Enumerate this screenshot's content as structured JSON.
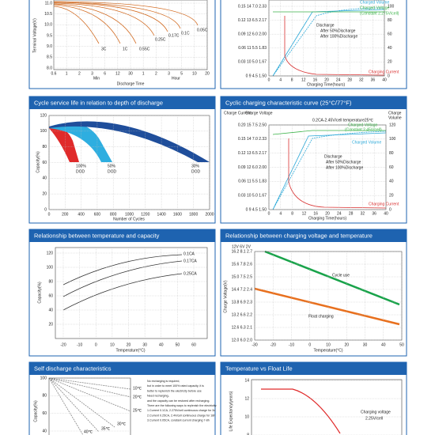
{
  "panels": [
    {
      "y_label": "Terminal Voltage(V)",
      "x_label": "Discharge Time",
      "y_ticks": [
        "11.0",
        "10.5",
        "10.0",
        "9.5",
        "9.0",
        "8.5",
        "8.0"
      ],
      "x_ticks": [
        "0.6",
        "1",
        "2",
        "3",
        "6",
        "12",
        "30",
        "1",
        "2",
        "3",
        "5",
        "10",
        "20"
      ],
      "notes": [
        "3C",
        "1C",
        "0.55C",
        "0.25C",
        "0.17C",
        "0.1C",
        "0.05C",
        "Min",
        "Hour"
      ]
    },
    {
      "x_label": "Charging Time(hours)",
      "y_ticks": [
        "0.15 14 7.0 2.33",
        "0.12 13 6.5 2.17",
        "0.09 12 6.0 2.00",
        "0.06 11 5.5 1.83",
        "0.03 10 5.0 1.67",
        "0 9 4.5 1.50"
      ],
      "y_ticks_right": [
        "100",
        "80",
        "60",
        "40",
        "20",
        "0"
      ],
      "x_ticks": [
        "0",
        "4",
        "8",
        "12",
        "16",
        "20",
        "24",
        "28",
        "32",
        "36",
        "40"
      ],
      "notes": [
        "Charged Volume",
        "Charged Voltage",
        "(Constant 2.275V/cell)",
        "Discharge",
        "After 50%Discharge",
        "After 100%Discharge",
        "Charging Current"
      ]
    },
    {
      "title": "Cycle service life in relation to depth of discharge",
      "y_label": "Capacity(%)",
      "x_label": "Number of Cycles",
      "y_ticks": [
        "120",
        "100",
        "80",
        "60",
        "40",
        "20",
        "0"
      ],
      "x_ticks": [
        "0",
        "200",
        "400",
        "600",
        "800",
        "1000",
        "1200",
        "1400",
        "1600",
        "1800",
        "2000"
      ],
      "notes": [
        "100%",
        "DOD",
        "50%",
        "DOD",
        "30%",
        "DOD"
      ]
    },
    {
      "title": "Cyclic charging characteristic curve (25°C/77°F)",
      "x_label": "Charging Time(hours)",
      "y_ticks": [
        "0.20 15 7.5 2.50",
        "0.15 14 7.0 2.33",
        "0.12 13 6.5 2.17",
        "0.09 12 6.0 2.00",
        "0.06 11 5.5 1.83",
        "0.03 10 5.0 1.67",
        "0 9 4.5 1.50"
      ],
      "y_ticks_right": [
        "120",
        "100",
        "80",
        "60",
        "40",
        "20",
        "0"
      ],
      "x_ticks": [
        "0",
        "4",
        "8",
        "12",
        "16",
        "20",
        "24",
        "28",
        "32",
        "36",
        "40"
      ],
      "notes": [
        "0.2CA-2.45V/cell temperature25℃",
        "Charged Voltage",
        "(Constant 2.45V/cell)",
        "Charged Volume",
        "Discharge",
        "After 50%Discharge",
        "After 100%Discharge",
        "Charging Current",
        "Charge Current",
        "Charge Voltage",
        "Charge",
        "Volume"
      ]
    },
    {
      "title": "Relationship between temperature and capacity",
      "y_label": "Capacity(%)",
      "x_label": "Temperature(°C)",
      "y_ticks": [
        "120",
        "100",
        "80",
        "60",
        "40",
        "20"
      ],
      "x_ticks": [
        "-20",
        "-10",
        "0",
        "10",
        "20",
        "30",
        "40",
        "50",
        "60"
      ],
      "notes": [
        "0.1CA",
        "0.17CA",
        "0.25CA"
      ]
    },
    {
      "title": "Relationship between charging voltage and temperature",
      "y_label": "Charge Voltage(V)",
      "x_label": "Temperature(°C)",
      "y_ticks": [
        "16.2 8.1 2.7",
        "15.6 7.8 2.6",
        "15.0 7.5 2.5",
        "14.4 7.2 2.4",
        "13.8 6.9 2.3",
        "13.2 6.6 2.2",
        "12.6 6.3 2.1",
        "12.0 6.0 2.0"
      ],
      "x_ticks": [
        "-30",
        "-20",
        "-10",
        "0",
        "10",
        "20",
        "30",
        "40",
        "50"
      ],
      "notes": [
        "Cycle use",
        "Float charging",
        "12V 6V 2V"
      ]
    },
    {
      "title": "Self discharge characteristics",
      "y_label": "Capacity(%)",
      "y_ticks": [
        "100",
        "80",
        "60",
        "40"
      ],
      "notes": [
        "10℃",
        "20℃",
        "25℃",
        "30℃",
        "35℃",
        "40℃"
      ],
      "text_block": [
        "No recharging is required,",
        "but in order to meet 100% rated capacity, it is",
        "better to replenish the electricity before use",
        "Need recharging,",
        "and the capacity can be restored after recharging.",
        "There are the following ways to replenish the electricity:",
        "1.Current 0.1CA, 2.275V/cell continuous charge for 3d",
        "2.Current 0.25CA, 2.4V/cell continuous charge for 18h",
        "3.Current 0.05CA, constant current charging 7-8h"
      ]
    },
    {
      "title": "Temperature vs Float Life",
      "y_label": "Life Expectancy(years)",
      "y_ticks": [
        "14",
        "12",
        "10",
        "8"
      ],
      "notes": [
        "Charging voltage",
        "2.25V/cell"
      ]
    }
  ]
}
